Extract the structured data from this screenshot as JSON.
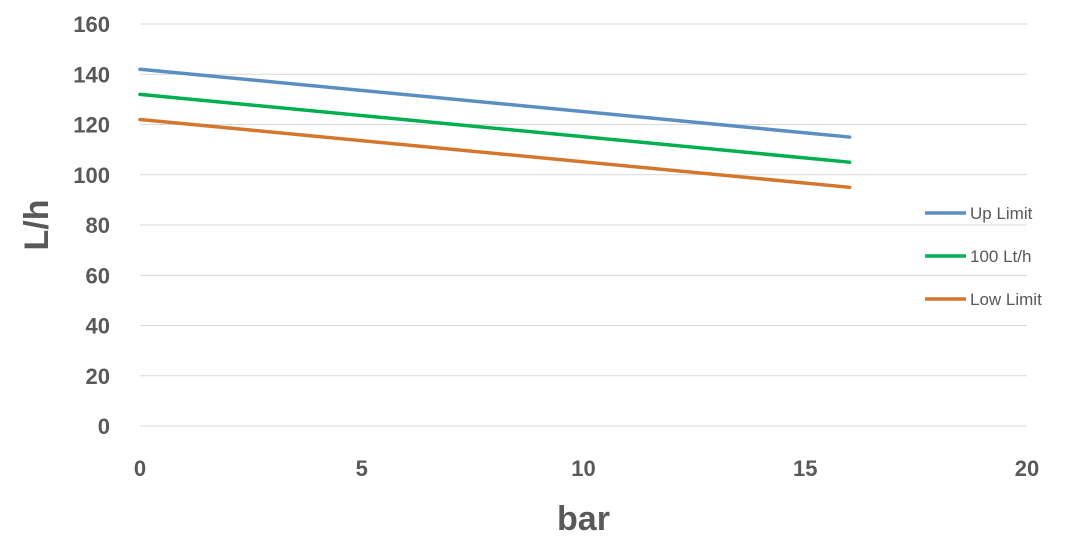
{
  "chart_data": {
    "type": "line",
    "title": "",
    "xlabel": "bar",
    "ylabel": "L/h",
    "xlim": [
      0,
      20
    ],
    "ylim": [
      0,
      160
    ],
    "xticks": [
      0,
      5,
      10,
      15,
      20
    ],
    "yticks": [
      0,
      20,
      40,
      60,
      80,
      100,
      120,
      140,
      160
    ],
    "grid": "horizontal",
    "legend_position": "right",
    "series": [
      {
        "name": "Up Limit",
        "color": "#5b8fc2",
        "x": [
          0,
          16
        ],
        "y": [
          142,
          115
        ]
      },
      {
        "name": "100 Lt/h",
        "color": "#00b050",
        "x": [
          0,
          16
        ],
        "y": [
          132,
          105
        ]
      },
      {
        "name": "Low Limit",
        "color": "#d4772c",
        "x": [
          0,
          16
        ],
        "y": [
          122,
          95
        ]
      }
    ]
  }
}
